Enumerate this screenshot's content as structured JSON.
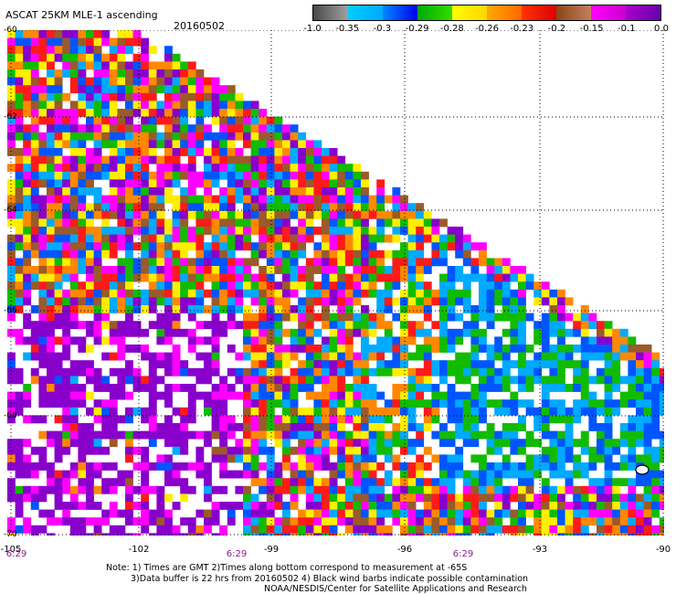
{
  "header": {
    "title": "ASCAT 25KM MLE-1 ascending",
    "date": "20160502"
  },
  "colorbar": {
    "segments": [
      {
        "from": "#4a4a4a",
        "to": "#a0a0a0"
      },
      {
        "from": "#00ccff",
        "to": "#00aaff"
      },
      {
        "from": "#0088ff",
        "to": "#0000ee"
      },
      {
        "from": "#00aa00",
        "to": "#33dd00"
      },
      {
        "from": "#ffff00",
        "to": "#ffd700"
      },
      {
        "from": "#ffaa00",
        "to": "#ff6600"
      },
      {
        "from": "#ff3300",
        "to": "#dd0000"
      },
      {
        "from": "#8b4513",
        "to": "#c08060"
      },
      {
        "from": "#ff00ff",
        "to": "#cc00cc"
      },
      {
        "from": "#aa00cc",
        "to": "#6600aa"
      }
    ],
    "labels": [
      "-1.0",
      "-0.35",
      "-0.3",
      "-0.29",
      "-0.28",
      "-0.26",
      "-0.23",
      "-0.2",
      "-0.15",
      "-0.1",
      "0.0"
    ]
  },
  "map": {
    "lat_labels": [
      "-60",
      "-62",
      "-64",
      "-66",
      "-68",
      "-70"
    ],
    "lon_labels": [
      "-105",
      "-102",
      "-99",
      "-96",
      "-93",
      "-90"
    ],
    "time_labels": [
      "6:29",
      "6:29",
      "6:29"
    ],
    "gridlines": true,
    "palette": {
      "purple": "#8800cc",
      "magenta": "#ff00ff",
      "brown": "#9a5a2a",
      "red": "#ff1a1a",
      "orange": "#ff8800",
      "yellow": "#ffee00",
      "green": "#11bb00",
      "blue": "#0055ff",
      "cyan": "#00aaff",
      "gray": "#777777"
    }
  },
  "notes": {
    "line1": "Note: 1) Times are GMT 2)Times along bottom correspond to measurement at -65S",
    "line2": "3)Data buffer is 22 hrs from 20160502 4) Black wind barbs indicate possible contamination",
    "line3": "NOAA/NESDIS/Center for Satellite Applications and Research"
  }
}
